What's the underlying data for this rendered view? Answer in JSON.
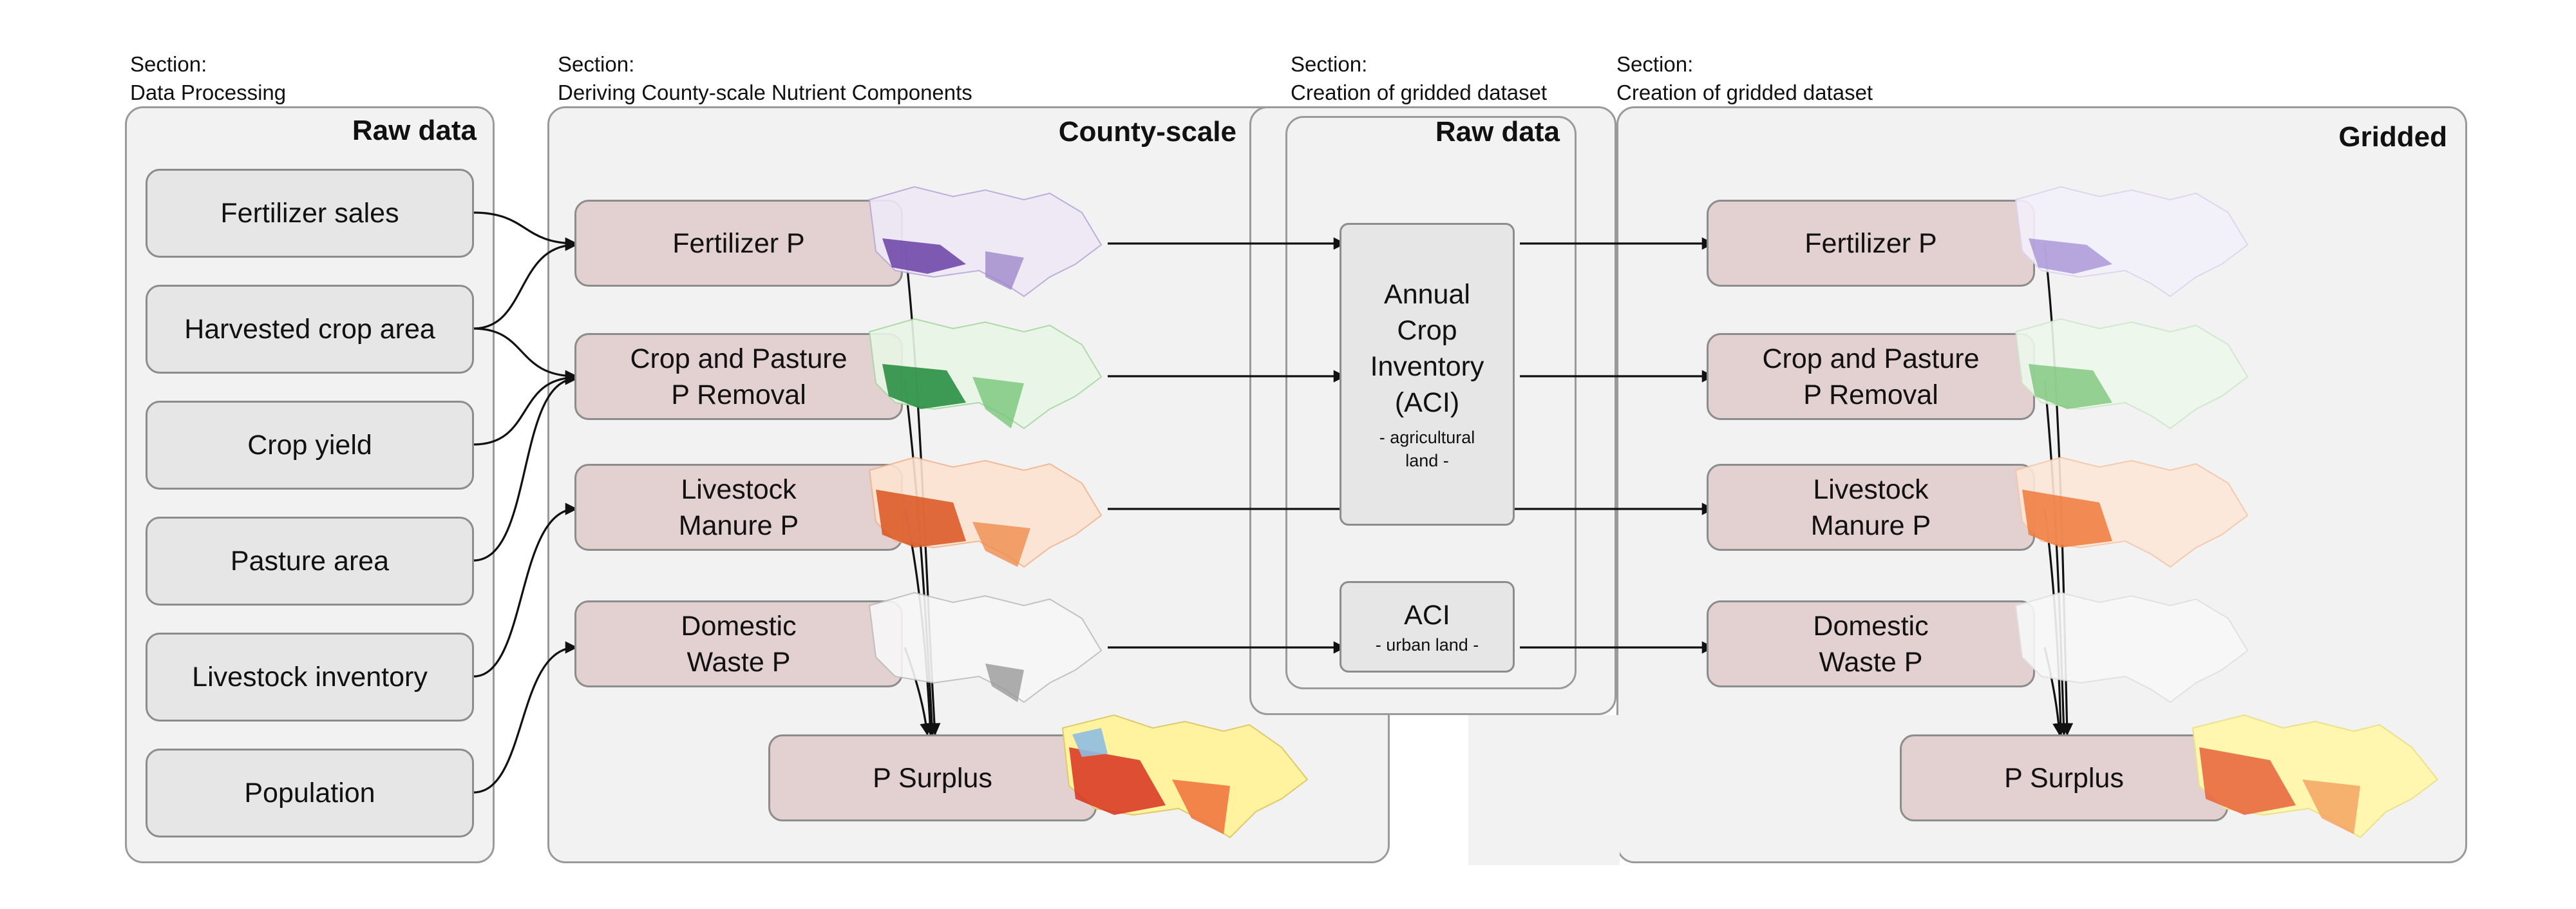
{
  "sections": [
    {
      "prefix": "Section:",
      "name": "Data Processing"
    },
    {
      "prefix": "Section:",
      "name": "Deriving County-scale Nutrient Components"
    },
    {
      "prefix": "Section:",
      "name": "Creation of gridded dataset"
    },
    {
      "prefix": "Section:",
      "name": "Creation of gridded dataset"
    }
  ],
  "panels": {
    "raw": {
      "title": "Raw data"
    },
    "county": {
      "title": "County-scale"
    },
    "raw2": {
      "title": "Raw data"
    },
    "gridded": {
      "title": "Gridded"
    }
  },
  "raw_inputs": [
    "Fertilizer sales",
    "Harvested crop area",
    "Crop yield",
    "Pasture area",
    "Livestock inventory",
    "Population"
  ],
  "county_components": [
    {
      "line1": "Fertilizer P",
      "line2": ""
    },
    {
      "line1": "Crop and Pasture",
      "line2": "P Removal"
    },
    {
      "line1": "Livestock",
      "line2": "Manure P"
    },
    {
      "line1": "Domestic",
      "line2": "Waste P"
    }
  ],
  "county_surplus": "P Surplus",
  "aci": {
    "agri_lines": [
      "Annual",
      "Crop",
      "Inventory",
      "(ACI)"
    ],
    "agri_sub_lines": [
      "- agricultural",
      "land -"
    ],
    "urban_main": "ACI",
    "urban_sub": "- urban land -"
  },
  "gridded_components": [
    {
      "line1": "Fertilizer P",
      "line2": ""
    },
    {
      "line1": "Crop and Pasture",
      "line2": "P Removal"
    },
    {
      "line1": "Livestock",
      "line2": "Manure P"
    },
    {
      "line1": "Domestic",
      "line2": "Waste P"
    }
  ],
  "gridded_surplus": "P Surplus",
  "colors": {
    "fertilizer": "#6a3fa5",
    "removal": "#1f8a3a",
    "manure": "#d9531e",
    "waste": "#9a9a9a",
    "surplus_high": "#d7301f",
    "surplus_low": "#fff3a0",
    "box_pink": "#e3d0d1",
    "box_grey": "#e6e6e6"
  }
}
